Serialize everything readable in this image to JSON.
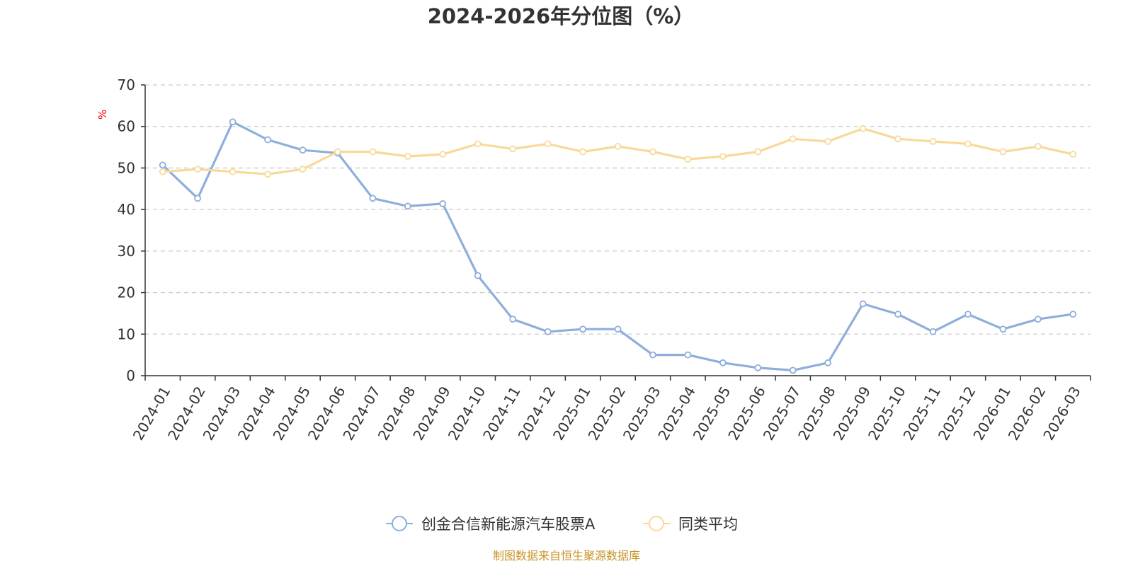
{
  "chart_data": {
    "type": "line",
    "title": "2024-2026年分位图（%）",
    "ylabel": "%",
    "xlabel": "",
    "ylim": [
      0,
      70
    ],
    "yticks": [
      0,
      10,
      20,
      30,
      40,
      50,
      60,
      70
    ],
    "grid": true,
    "legend_position": "bottom-center",
    "categories": [
      "2024-01",
      "2024-02",
      "2024-03",
      "2024-04",
      "2024-05",
      "2024-06",
      "2024-07",
      "2024-08",
      "2024-09",
      "2024-10",
      "2024-11",
      "2024-12",
      "2025-01",
      "2025-02",
      "2025-03",
      "2025-04",
      "2025-05",
      "2025-06",
      "2025-07",
      "2025-08",
      "2025-09",
      "2025-10",
      "2025-11",
      "2025-12",
      "2026-01",
      "2026-02",
      "2026-03"
    ],
    "series": [
      {
        "name": "创金合信新能源汽车股票A",
        "color": "#8eaedb",
        "values": [
          50.7,
          42.7,
          61.1,
          56.8,
          54.3,
          53.6,
          42.7,
          40.8,
          41.4,
          24.1,
          13.6,
          10.6,
          11.2,
          11.2,
          5.0,
          5.0,
          3.1,
          1.9,
          1.3,
          3.1,
          17.3,
          14.8,
          10.6,
          14.8,
          11.2,
          13.6,
          14.8
        ]
      },
      {
        "name": "同类平均",
        "color": "#f9d99a",
        "values": [
          49.1,
          49.7,
          49.1,
          48.5,
          49.7,
          53.9,
          53.9,
          52.8,
          53.3,
          55.8,
          54.6,
          55.8,
          53.9,
          55.2,
          53.9,
          52.1,
          52.8,
          53.9,
          57.0,
          56.4,
          59.5,
          57.0,
          56.4,
          55.8,
          53.9,
          55.2,
          53.3
        ]
      }
    ],
    "source": "制图数据来自恒生聚源数据库"
  }
}
